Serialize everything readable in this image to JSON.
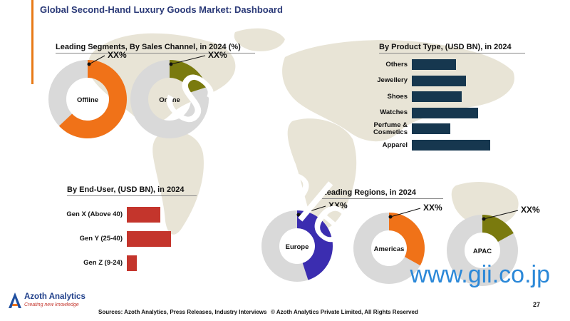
{
  "title": "Global Second-Hand Luxury Goods Market: Dashboard",
  "sections": {
    "sales_channel": "Leading Segments, By Sales Channel, in 2024 (%)",
    "product_type": "By Product Type, (USD BN), in 2024",
    "end_user": "By End-User, (USD BN), in 2024",
    "regions": "Leading Regions, in 2024"
  },
  "brand": {
    "name": "Azoth Analytics",
    "tagline": "Creating new knowledge"
  },
  "footer": {
    "sources": "Sources: Azoth Analytics, Press Releases, Industry Interviews",
    "copyright": "© Azoth Analytics Private Limited, All Rights Reserved",
    "page": "27"
  },
  "watermark": "Sample",
  "site": "www.gii.co.jp",
  "chart_data": [
    {
      "type": "pie",
      "title": "Leading Segments, By Sales Channel, in 2024 (%)",
      "charts": [
        {
          "name": "Offline",
          "value_label": "XX%",
          "value": 0.63,
          "color": "#f07218"
        },
        {
          "name": "Online",
          "value_label": "XX%",
          "value": 0.2,
          "color": "#7a7a0e"
        }
      ]
    },
    {
      "type": "bar",
      "title": "By Product Type, (USD BN), in 2024",
      "categories": [
        "Others",
        "Jewellery",
        "Shoes",
        "Watches",
        "Perfume & Cosmetics",
        "Apparel"
      ],
      "values": [
        62,
        76,
        70,
        93,
        54,
        110
      ],
      "color": "#16374f"
    },
    {
      "type": "bar",
      "title": "By End-User, (USD BN), in 2024",
      "categories": [
        "Gen X (Above 40)",
        "Gen Y (25-40)",
        "Gen Z (9-24)"
      ],
      "values": [
        47,
        62,
        14
      ],
      "color": "#c4352c"
    },
    {
      "type": "pie",
      "title": "Leading Regions, in 2024",
      "charts": [
        {
          "name": "Europe",
          "value_label": "XX%",
          "value": 0.45,
          "color": "#3b2db0"
        },
        {
          "name": "Americas",
          "value_label": "XX%",
          "value": 0.33,
          "color": "#f07218"
        },
        {
          "name": "APAC",
          "value_label": "XX%",
          "value": 0.17,
          "color": "#7a7a0e"
        }
      ]
    }
  ]
}
